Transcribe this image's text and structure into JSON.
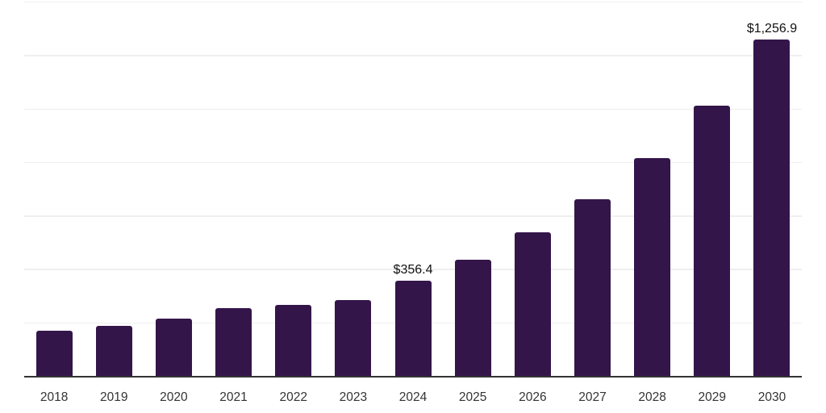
{
  "colors": {
    "bar": "#34154a",
    "gridline": "#efefef",
    "axis": "#333333",
    "tick_label": "#333333",
    "data_label": "#111111",
    "background": "#ffffff"
  },
  "chart_data": {
    "type": "bar",
    "title": "",
    "xlabel": "",
    "ylabel": "",
    "categories": [
      "2018",
      "2019",
      "2020",
      "2021",
      "2022",
      "2023",
      "2024",
      "2025",
      "2026",
      "2027",
      "2028",
      "2029",
      "2030"
    ],
    "values": [
      168,
      186,
      215,
      253,
      265,
      285,
      356.4,
      435,
      536,
      662,
      815,
      1010,
      1256.9
    ],
    "value_labels": [
      "",
      "",
      "",
      "",
      "",
      "",
      "$356.4",
      "",
      "",
      "",
      "",
      "",
      "$1,256.9"
    ],
    "ylim": [
      0,
      1400
    ],
    "gridline_step": 200,
    "grid": true,
    "legend": false,
    "y_axis_tick_labels_visible": false
  }
}
